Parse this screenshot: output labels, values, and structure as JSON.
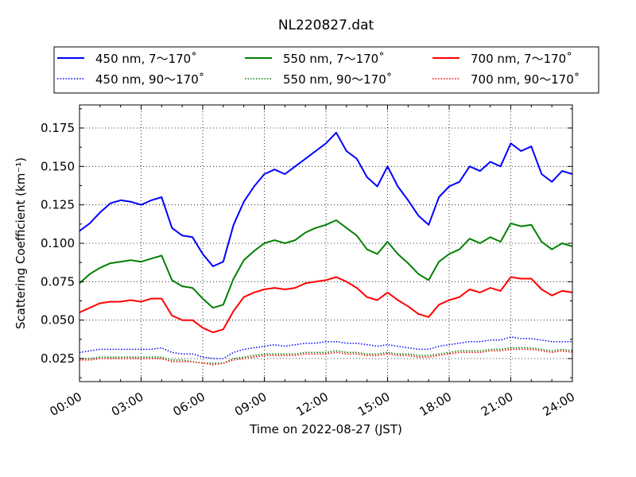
{
  "chart_data": {
    "type": "line",
    "title": "NL220827.dat",
    "xlabel": "Time on 2022-08-27 (JST)",
    "ylabel": "Scattering Coefficient (km⁻¹)",
    "xlim": [
      0,
      24
    ],
    "ylim": [
      0.01,
      0.19
    ],
    "x_ticks": [
      "00:00",
      "03:00",
      "06:00",
      "09:00",
      "12:00",
      "15:00",
      "18:00",
      "21:00",
      "24:00"
    ],
    "y_ticks": [
      "0.025",
      "0.050",
      "0.075",
      "0.100",
      "0.125",
      "0.150",
      "0.175"
    ],
    "grid": true,
    "legend_position": "top",
    "x_hours": [
      0,
      0.5,
      1,
      1.5,
      2,
      2.5,
      3,
      3.5,
      4,
      4.5,
      5,
      5.5,
      6,
      6.5,
      7,
      7.5,
      8,
      8.5,
      9,
      9.5,
      10,
      10.5,
      11,
      11.5,
      12,
      12.5,
      13,
      13.5,
      14,
      14.5,
      15,
      15.5,
      16,
      16.5,
      17,
      17.5,
      18,
      18.5,
      19,
      19.5,
      20,
      20.5,
      21,
      21.5,
      22,
      22.5,
      23,
      23.5,
      24
    ],
    "series": [
      {
        "name": "450 nm, 7～170˚",
        "color": "#0000ff",
        "style": "solid",
        "values": [
          0.108,
          0.113,
          0.12,
          0.126,
          0.128,
          0.127,
          0.125,
          0.128,
          0.13,
          0.11,
          0.105,
          0.104,
          0.093,
          0.085,
          0.088,
          0.112,
          0.127,
          0.137,
          0.145,
          0.148,
          0.145,
          0.15,
          0.155,
          0.16,
          0.165,
          0.172,
          0.16,
          0.155,
          0.143,
          0.137,
          0.15,
          0.137,
          0.128,
          0.118,
          0.112,
          0.13,
          0.137,
          0.14,
          0.15,
          0.147,
          0.153,
          0.15,
          0.165,
          0.16,
          0.163,
          0.145,
          0.14,
          0.147,
          0.145
        ]
      },
      {
        "name": "550 nm, 7～170˚",
        "color": "#008000",
        "style": "solid",
        "values": [
          0.074,
          0.08,
          0.084,
          0.087,
          0.088,
          0.089,
          0.088,
          0.09,
          0.092,
          0.076,
          0.072,
          0.071,
          0.064,
          0.058,
          0.06,
          0.077,
          0.089,
          0.095,
          0.1,
          0.102,
          0.1,
          0.102,
          0.107,
          0.11,
          0.112,
          0.115,
          0.11,
          0.105,
          0.096,
          0.093,
          0.101,
          0.093,
          0.087,
          0.08,
          0.076,
          0.088,
          0.093,
          0.096,
          0.103,
          0.1,
          0.104,
          0.101,
          0.113,
          0.111,
          0.112,
          0.101,
          0.096,
          0.1,
          0.098
        ]
      },
      {
        "name": "700 nm, 7～170˚",
        "color": "#ff0000",
        "style": "solid",
        "values": [
          0.055,
          0.058,
          0.061,
          0.062,
          0.062,
          0.063,
          0.062,
          0.064,
          0.064,
          0.053,
          0.05,
          0.05,
          0.045,
          0.042,
          0.044,
          0.056,
          0.065,
          0.068,
          0.07,
          0.071,
          0.07,
          0.071,
          0.074,
          0.075,
          0.076,
          0.078,
          0.075,
          0.071,
          0.065,
          0.063,
          0.068,
          0.063,
          0.059,
          0.054,
          0.052,
          0.06,
          0.063,
          0.065,
          0.07,
          0.068,
          0.071,
          0.069,
          0.078,
          0.077,
          0.077,
          0.07,
          0.066,
          0.069,
          0.068
        ]
      },
      {
        "name": "450 nm, 90～170˚",
        "color": "#0000ff",
        "style": "dotted",
        "values": [
          0.029,
          0.03,
          0.031,
          0.031,
          0.031,
          0.031,
          0.031,
          0.031,
          0.032,
          0.029,
          0.028,
          0.028,
          0.026,
          0.025,
          0.025,
          0.029,
          0.031,
          0.032,
          0.033,
          0.034,
          0.033,
          0.034,
          0.035,
          0.035,
          0.036,
          0.036,
          0.035,
          0.035,
          0.034,
          0.033,
          0.034,
          0.033,
          0.032,
          0.031,
          0.031,
          0.033,
          0.034,
          0.035,
          0.036,
          0.036,
          0.037,
          0.037,
          0.039,
          0.038,
          0.038,
          0.037,
          0.036,
          0.036,
          0.036
        ]
      },
      {
        "name": "550 nm, 90～170˚",
        "color": "#008000",
        "style": "dotted",
        "values": [
          0.025,
          0.025,
          0.026,
          0.026,
          0.026,
          0.026,
          0.026,
          0.026,
          0.026,
          0.024,
          0.024,
          0.023,
          0.022,
          0.022,
          0.022,
          0.025,
          0.026,
          0.027,
          0.028,
          0.028,
          0.028,
          0.028,
          0.029,
          0.029,
          0.029,
          0.03,
          0.029,
          0.029,
          0.028,
          0.028,
          0.029,
          0.028,
          0.028,
          0.027,
          0.027,
          0.028,
          0.029,
          0.03,
          0.03,
          0.03,
          0.031,
          0.031,
          0.032,
          0.032,
          0.032,
          0.031,
          0.03,
          0.031,
          0.03
        ]
      },
      {
        "name": "700 nm, 90～170˚",
        "color": "#ff0000",
        "style": "dotted",
        "values": [
          0.024,
          0.024,
          0.025,
          0.025,
          0.025,
          0.025,
          0.025,
          0.025,
          0.025,
          0.023,
          0.023,
          0.023,
          0.022,
          0.021,
          0.022,
          0.024,
          0.025,
          0.026,
          0.027,
          0.027,
          0.027,
          0.027,
          0.028,
          0.028,
          0.028,
          0.029,
          0.028,
          0.028,
          0.027,
          0.027,
          0.028,
          0.027,
          0.027,
          0.026,
          0.026,
          0.027,
          0.028,
          0.029,
          0.029,
          0.029,
          0.03,
          0.03,
          0.031,
          0.031,
          0.031,
          0.03,
          0.029,
          0.03,
          0.029
        ]
      }
    ]
  }
}
